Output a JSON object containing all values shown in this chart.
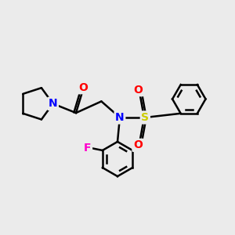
{
  "background_color": "#ebebeb",
  "bond_color": "#000000",
  "N_color": "#0000ff",
  "O_color": "#ff0000",
  "S_color": "#cccc00",
  "F_color": "#ff00cc",
  "line_width": 1.8,
  "figsize": [
    3.0,
    3.0
  ],
  "dpi": 100,
  "xlim": [
    0,
    10
  ],
  "ylim": [
    0,
    10
  ],
  "font_size": 10
}
